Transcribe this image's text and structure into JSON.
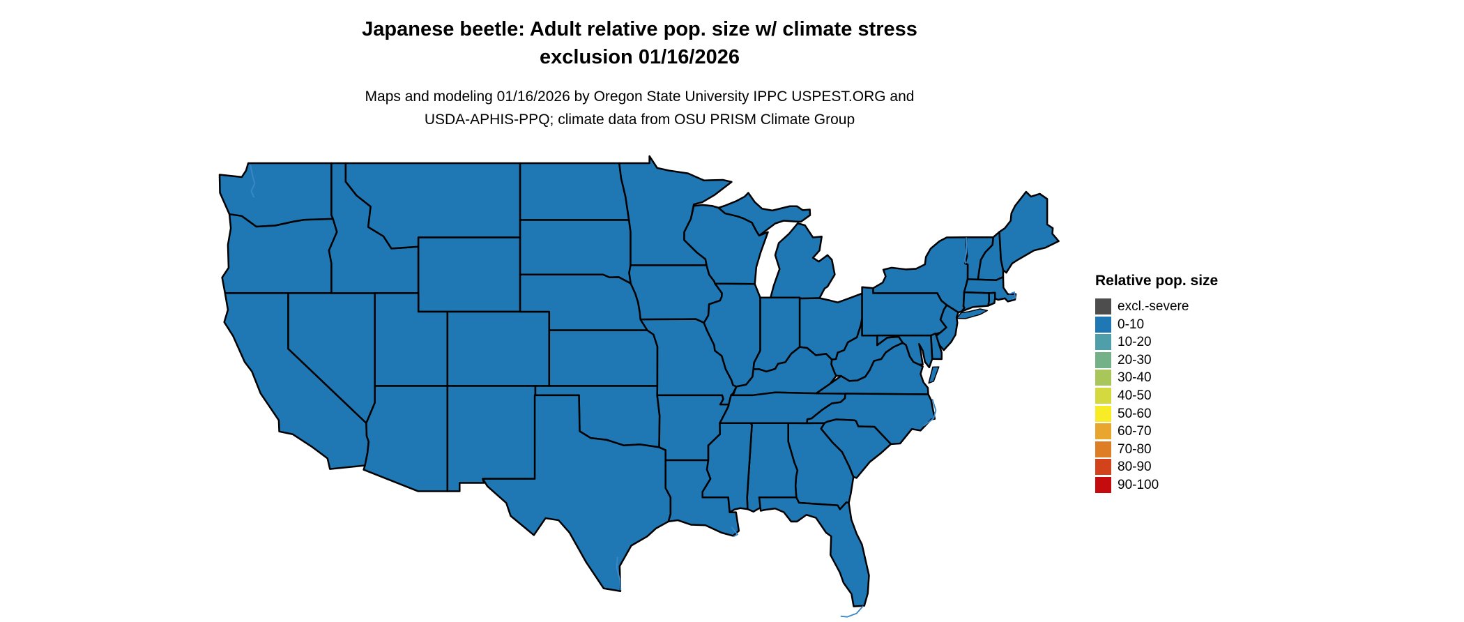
{
  "title": {
    "line1": "Japanese beetle: Adult relative pop. size w/ climate stress",
    "line2": "exclusion 01/16/2026"
  },
  "subtitle": {
    "line1": "Maps and modeling 01/16/2026 by Oregon State University IPPC USPEST.ORG and",
    "line2": "USDA-APHIS-PPQ; climate data from OSU PRISM Climate Group"
  },
  "legend": {
    "title": "Relative pop. size",
    "items": [
      {
        "label": "excl.-severe",
        "color": "#4d4d4d"
      },
      {
        "label": "0-10",
        "color": "#1f78b4"
      },
      {
        "label": "10-20",
        "color": "#4f9faa"
      },
      {
        "label": "20-30",
        "color": "#74b088"
      },
      {
        "label": "30-40",
        "color": "#a9c65b"
      },
      {
        "label": "40-50",
        "color": "#d3d93f"
      },
      {
        "label": "50-60",
        "color": "#f7ec25"
      },
      {
        "label": "60-70",
        "color": "#e9a62f"
      },
      {
        "label": "70-80",
        "color": "#dd7d26"
      },
      {
        "label": "80-90",
        "color": "#d2431b"
      },
      {
        "label": "90-100",
        "color": "#c40b0e"
      }
    ]
  },
  "map": {
    "fill_color": "#1f78b4",
    "border_color": "#000000",
    "water_detail_color": "#3a87c8"
  }
}
